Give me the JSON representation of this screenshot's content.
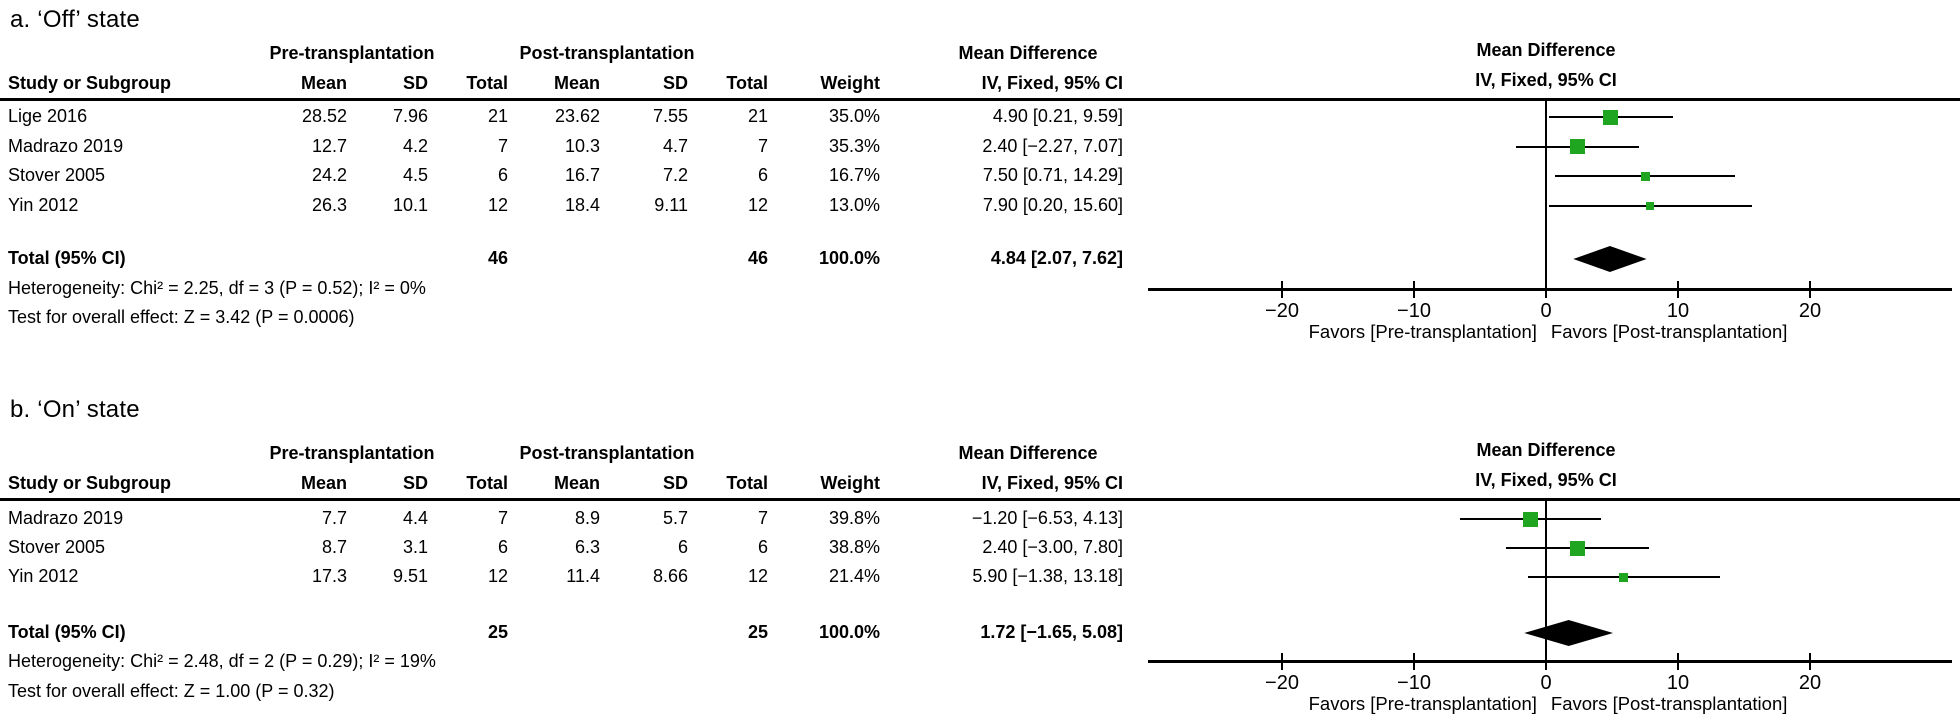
{
  "marker_color": "#1FA51F",
  "line_color": "#000000",
  "sections": [
    {
      "label": "a. ‘Off’ state",
      "table": {
        "group_headers": {
          "pre": "Pre-transplantation",
          "post": "Post-transplantation",
          "md": "Mean Difference"
        },
        "col_headers": {
          "study": "Study or Subgroup",
          "mean": "Mean",
          "sd": "SD",
          "total": "Total",
          "weight": "Weight",
          "ci": "IV, Fixed, 95% CI"
        },
        "rows": [
          {
            "study": "Lige 2016",
            "mean_pre": "28.52",
            "sd_pre": "7.96",
            "total_pre": "21",
            "mean_post": "23.62",
            "sd_post": "7.55",
            "total_post": "21",
            "weight": "35.0%",
            "ci": "4.90 [0.21, 9.59]"
          },
          {
            "study": "Madrazo 2019",
            "mean_pre": "12.7",
            "sd_pre": "4.2",
            "total_pre": "7",
            "mean_post": "10.3",
            "sd_post": "4.7",
            "total_post": "7",
            "weight": "35.3%",
            "ci": "2.40 [−2.27, 7.07]"
          },
          {
            "study": "Stover 2005",
            "mean_pre": "24.2",
            "sd_pre": "4.5",
            "total_pre": "6",
            "mean_post": "16.7",
            "sd_post": "7.2",
            "total_post": "6",
            "weight": "16.7%",
            "ci": "7.50 [0.71, 14.29]"
          },
          {
            "study": "Yin 2012",
            "mean_pre": "26.3",
            "sd_pre": "10.1",
            "total_pre": "12",
            "mean_post": "18.4",
            "sd_post": "9.11",
            "total_post": "12",
            "weight": "13.0%",
            "ci": "7.90 [0.20, 15.60]"
          }
        ],
        "total": {
          "label": "Total (95% CI)",
          "total_pre": "46",
          "total_post": "46",
          "weight": "100.0%",
          "ci": "4.84 [2.07, 7.62]"
        },
        "heterogeneity": "Heterogeneity: Chi² = 2.25, df = 3 (P = 0.52); I² = 0%",
        "overall_effect": "Test for overall effect: Z = 3.42 (P = 0.0006)"
      },
      "plot": {
        "header_line1": "Mean Difference",
        "header_line2": "IV, Fixed, 95% CI",
        "favors_left": "Favors [Pre-transplantation]",
        "favors_right": "Favors [Post-transplantation]"
      }
    },
    {
      "label": "b. ‘On’ state",
      "table": {
        "group_headers": {
          "pre": "Pre-transplantation",
          "post": "Post-transplantation",
          "md": "Mean Difference"
        },
        "col_headers": {
          "study": "Study or Subgroup",
          "mean": "Mean",
          "sd": "SD",
          "total": "Total",
          "weight": "Weight",
          "ci": "IV, Fixed, 95% CI"
        },
        "rows": [
          {
            "study": "Madrazo 2019",
            "mean_pre": "7.7",
            "sd_pre": "4.4",
            "total_pre": "7",
            "mean_post": "8.9",
            "sd_post": "5.7",
            "total_post": "7",
            "weight": "39.8%",
            "ci": "−1.20 [−6.53, 4.13]"
          },
          {
            "study": "Stover 2005",
            "mean_pre": "8.7",
            "sd_pre": "3.1",
            "total_pre": "6",
            "mean_post": "6.3",
            "sd_post": "6",
            "total_post": "6",
            "weight": "38.8%",
            "ci": "2.40 [−3.00, 7.80]"
          },
          {
            "study": "Yin 2012",
            "mean_pre": "17.3",
            "sd_pre": "9.51",
            "total_pre": "12",
            "mean_post": "11.4",
            "sd_post": "8.66",
            "total_post": "12",
            "weight": "21.4%",
            "ci": "5.90 [−1.38, 13.18]"
          }
        ],
        "total": {
          "label": "Total (95% CI)",
          "total_pre": "25",
          "total_post": "25",
          "weight": "100.0%",
          "ci": "1.72 [−1.65, 5.08]"
        },
        "heterogeneity": "Heterogeneity: Chi² = 2.48, df = 2 (P = 0.29); I² = 19%",
        "overall_effect": "Test for overall effect: Z = 1.00 (P = 0.32)"
      },
      "plot": {
        "header_line1": "Mean Difference",
        "header_line2": "IV, Fixed, 95% CI",
        "favors_left": "Favors [Pre-transplantation]",
        "favors_right": "Favors [Post-transplantation]"
      }
    }
  ],
  "chart_data": [
    {
      "type": "forest",
      "title": "a. ‘Off’ state",
      "effect_measure": "Mean Difference, IV, Fixed, 95% CI",
      "x_ticks": [
        -20,
        -10,
        0,
        10,
        20
      ],
      "xlim": [
        -30,
        31
      ],
      "axis_label_left": "Favors [Pre-transplantation]",
      "axis_label_right": "Favors [Post-transplantation]",
      "studies": [
        {
          "name": "Lige 2016",
          "estimate": 4.9,
          "ci_low": 0.21,
          "ci_high": 9.59,
          "weight_pct": 35.0
        },
        {
          "name": "Madrazo 2019",
          "estimate": 2.4,
          "ci_low": -2.27,
          "ci_high": 7.07,
          "weight_pct": 35.3
        },
        {
          "name": "Stover 2005",
          "estimate": 7.5,
          "ci_low": 0.71,
          "ci_high": 14.29,
          "weight_pct": 16.7
        },
        {
          "name": "Yin 2012",
          "estimate": 7.9,
          "ci_low": 0.2,
          "ci_high": 15.6,
          "weight_pct": 13.0
        }
      ],
      "total": {
        "estimate": 4.84,
        "ci_low": 2.07,
        "ci_high": 7.62
      }
    },
    {
      "type": "forest",
      "title": "b. ‘On’ state",
      "effect_measure": "Mean Difference, IV, Fixed, 95% CI",
      "x_ticks": [
        -20,
        -10,
        0,
        10,
        20
      ],
      "xlim": [
        -30,
        31
      ],
      "axis_label_left": "Favors [Pre-transplantation]",
      "axis_label_right": "Favors [Post-transplantation]",
      "studies": [
        {
          "name": "Madrazo 2019",
          "estimate": -1.2,
          "ci_low": -6.53,
          "ci_high": 4.13,
          "weight_pct": 39.8
        },
        {
          "name": "Stover 2005",
          "estimate": 2.4,
          "ci_low": -3.0,
          "ci_high": 7.8,
          "weight_pct": 38.8
        },
        {
          "name": "Yin 2012",
          "estimate": 5.9,
          "ci_low": -1.38,
          "ci_high": 13.18,
          "weight_pct": 21.4
        }
      ],
      "total": {
        "estimate": 1.72,
        "ci_low": -1.65,
        "ci_high": 5.08
      }
    }
  ]
}
